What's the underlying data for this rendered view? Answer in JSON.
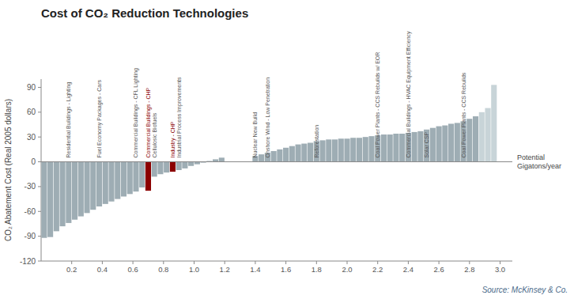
{
  "chart_data": {
    "type": "bar",
    "title": "Cost of CO₂ Reduction Technologies",
    "ylabel": "CO₂ Abatement Cost (Real 2005 dollars)",
    "xlabel": "Potential\nGigatons/year",
    "source": "Source: McKinsey & Co.",
    "x": [
      0.02,
      0.06,
      0.1,
      0.14,
      0.18,
      0.22,
      0.26,
      0.3,
      0.34,
      0.38,
      0.42,
      0.46,
      0.5,
      0.54,
      0.58,
      0.62,
      0.66,
      0.7,
      0.74,
      0.78,
      0.82,
      0.86,
      0.9,
      0.94,
      0.98,
      1.02,
      1.06,
      1.1,
      1.14,
      1.18,
      1.4,
      1.44,
      1.48,
      1.52,
      1.56,
      1.6,
      1.64,
      1.68,
      1.72,
      1.76,
      1.8,
      1.84,
      1.88,
      1.92,
      1.96,
      2.0,
      2.04,
      2.08,
      2.12,
      2.16,
      2.2,
      2.24,
      2.28,
      2.32,
      2.36,
      2.4,
      2.44,
      2.48,
      2.52,
      2.56,
      2.6,
      2.64,
      2.68,
      2.72,
      2.76,
      2.8,
      2.84,
      2.88,
      2.92,
      2.96
    ],
    "values": [
      -92,
      -91,
      -84,
      -78,
      -74,
      -70,
      -66,
      -62,
      -58,
      -54,
      -51,
      -48,
      -45,
      -42,
      -39,
      -36,
      -31,
      -35,
      -18,
      -15,
      -13,
      -12,
      -10,
      -8,
      -5,
      -3,
      -1,
      1,
      3,
      5,
      7,
      9,
      11,
      13,
      15,
      17,
      19,
      21,
      22,
      23,
      25,
      26,
      27,
      27,
      28,
      28,
      29,
      29,
      30,
      31,
      32,
      33,
      33,
      34,
      34,
      35,
      36,
      37,
      39,
      41,
      43,
      44,
      46,
      47,
      49,
      52,
      55,
      60,
      65,
      93
    ],
    "colors": [
      "#9eadb4",
      "#9eadb4",
      "#9eadb4",
      "#9eadb4",
      "#9eadb4",
      "#9eadb4",
      "#9eadb4",
      "#9eadb4",
      "#9eadb4",
      "#9eadb4",
      "#9eadb4",
      "#9eadb4",
      "#9eadb4",
      "#9eadb4",
      "#9eadb4",
      "#9eadb4",
      "#9eadb4",
      "#8b0000",
      "#9eadb4",
      "#9eadb4",
      "#9eadb4",
      "#8b0000",
      "#9eadb4",
      "#9eadb4",
      "#9eadb4",
      "#9eadb4",
      "#9eadb4",
      "#9eadb4",
      "#9eadb4",
      "#9eadb4",
      "#9eadb4",
      "#9eadb4",
      "#9eadb4",
      "#9eadb4",
      "#9eadb4",
      "#9eadb4",
      "#9eadb4",
      "#9eadb4",
      "#9eadb4",
      "#9eadb4",
      "#9eadb4",
      "#9eadb4",
      "#9eadb4",
      "#9eadb4",
      "#9eadb4",
      "#9eadb4",
      "#9eadb4",
      "#9eadb4",
      "#9eadb4",
      "#9eadb4",
      "#9eadb4",
      "#9eadb4",
      "#9eadb4",
      "#9eadb4",
      "#9eadb4",
      "#9eadb4",
      "#9eadb4",
      "#9eadb4",
      "#9eadb4",
      "#9eadb4",
      "#9eadb4",
      "#9eadb4",
      "#9eadb4",
      "#9eadb4",
      "#9eadb4",
      "#9eadb4",
      "#9eadb4",
      "#c8d4d8",
      "#c8d4d8",
      "#c8d4d8"
    ],
    "xlim": [
      0.0,
      3.08
    ],
    "xticks": [
      0.2,
      0.4,
      0.6,
      0.8,
      {
        "value": 1,
        "label": "1.0"
      },
      1.2,
      1.4,
      1.6,
      1.8,
      {
        "value": 2,
        "label": "2.0"
      },
      2.2,
      2.4,
      2.6,
      2.8,
      {
        "value": 3,
        "label": "3.0"
      }
    ],
    "ylim": [
      -120,
      100
    ],
    "yticks": [
      -120,
      -90,
      -60,
      -30,
      0,
      30,
      60,
      90
    ],
    "grid": false,
    "annotations": [
      {
        "x": 0.18,
        "y": 2,
        "text": "Residential Buildings - Lighting",
        "color": "#555555"
      },
      {
        "x": 0.38,
        "y": 2,
        "text": "Fuel Economy Packages - Cars",
        "color": "#555555"
      },
      {
        "x": 0.62,
        "y": 2,
        "text": "Commercial Buildings - CFL Lighting",
        "color": "#555555"
      },
      {
        "x": 0.74,
        "y": 2,
        "text": "Cellulosic Biofuels",
        "color": "#555555"
      },
      {
        "x": 0.9,
        "y": 2,
        "text": "Industrial Process Improvements",
        "color": "#555555"
      },
      {
        "x": 1.4,
        "y": 2,
        "text": "Nuclear New Build",
        "color": "#555555"
      },
      {
        "x": 1.48,
        "y": 2,
        "text": "Onshore Wind - Low Penetration",
        "color": "#555555"
      },
      {
        "x": 1.8,
        "y": 2,
        "text": "Reforestation",
        "color": "#555555"
      },
      {
        "x": 2.2,
        "y": 2,
        "text": "Coal Power Plants - CCS Rebuilds w/ EOR",
        "color": "#555555"
      },
      {
        "x": 2.4,
        "y": 2,
        "text": "Commercial Buildings - HVAC Equipment Efficiency",
        "color": "#555555"
      },
      {
        "x": 2.52,
        "y": 2,
        "text": "Solar CSP",
        "color": "#555555"
      },
      {
        "x": 2.76,
        "y": 2,
        "text": "Coal Power Plants - CCS Rebuilds",
        "color": "#555555"
      },
      {
        "x": 0.7,
        "y": 2,
        "text": "Commercial Buildings - CHP",
        "color": "#8b0000"
      },
      {
        "x": 0.86,
        "y": 2,
        "text": "Industry - CHP",
        "color": "#8b0000"
      }
    ]
  }
}
